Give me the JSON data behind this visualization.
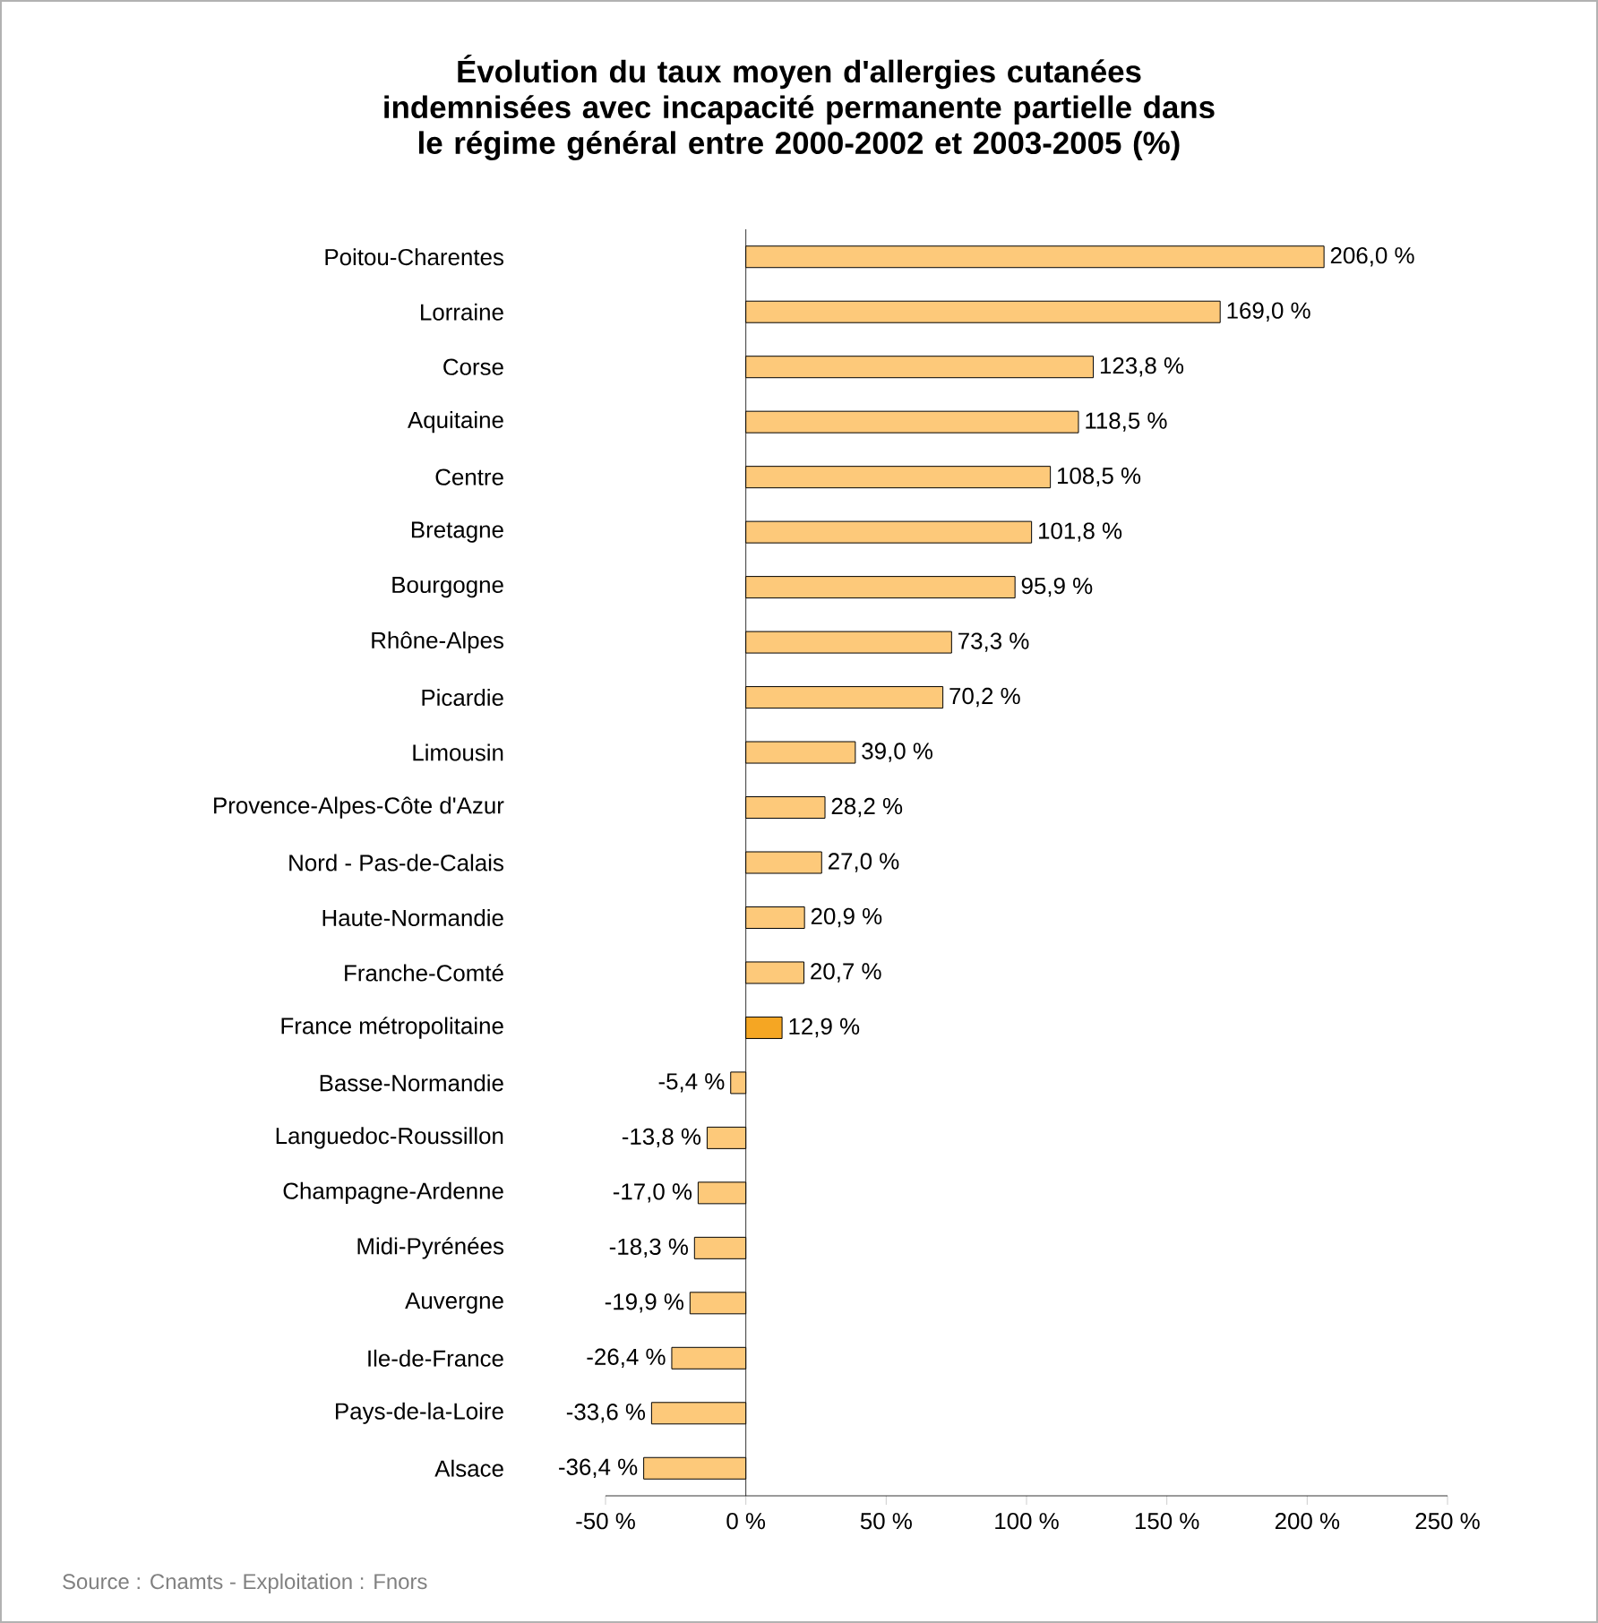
{
  "chart_data": {
    "type": "bar",
    "orientation": "horizontal",
    "title": "Évolution du taux moyen d'allergies cutanées indemnisées avec incapacité permanente partielle dans le régime général entre 2000-2002 et 2003-2005 (%)",
    "categories": [
      "Poitou-Charentes",
      "Lorraine",
      "Corse",
      "Aquitaine",
      "Centre",
      "Bretagne",
      "Bourgogne",
      "Rhône-Alpes",
      "Picardie",
      "Limousin",
      "Provence-Alpes-Côte d'Azur",
      "Nord - Pas-de-Calais",
      "Haute-Normandie",
      "Franche-Comté",
      "France métropolitaine",
      "Basse-Normandie",
      "Languedoc-Roussillon",
      "Champagne-Ardenne",
      "Midi-Pyrénées",
      "Auvergne",
      "Ile-de-France",
      "Pays-de-la-Loire",
      "Alsace"
    ],
    "values": [
      206.0,
      169.0,
      123.8,
      118.5,
      108.5,
      101.8,
      95.9,
      73.3,
      70.2,
      39.0,
      28.2,
      27.0,
      20.9,
      20.7,
      12.9,
      -5.4,
      -13.8,
      -17.0,
      -18.3,
      -19.9,
      -26.4,
      -33.6,
      -36.4
    ],
    "value_labels": [
      "206,0 %",
      "169,0 %",
      "123,8 %",
      "118,5 %",
      "108,5 %",
      "101,8 %",
      "95,9 %",
      "73,3 %",
      "70,2 %",
      "39,0 %",
      "28,2 %",
      "27,0 %",
      "20,9 %",
      "20,7 %",
      "12,9 %",
      "-5,4 %",
      "-13,8 %",
      "-17,0 %",
      "-18,3 %",
      "-19,9 %",
      "-26,4 %",
      "-33,6 %",
      "-36,4 %"
    ],
    "colors": [
      "#fdc97a",
      "#fdc97a",
      "#fdc97a",
      "#fdc97a",
      "#fdc97a",
      "#fdc97a",
      "#fdc97a",
      "#fdc97a",
      "#fdc97a",
      "#fdc97a",
      "#fdc97a",
      "#fdc97a",
      "#fdc97a",
      "#fdc97a",
      "#f5a623",
      "#fdc97a",
      "#fdc97a",
      "#fdc97a",
      "#fdc97a",
      "#fdc97a",
      "#fdc97a",
      "#fdc97a",
      "#fdc97a"
    ],
    "xlim": [
      -50,
      250
    ],
    "xticks": [
      {
        "value": -50,
        "label": "-50 %"
      },
      {
        "value": 0,
        "label": "0 %"
      },
      {
        "value": 50,
        "label": "50 %"
      },
      {
        "value": 100,
        "label": "100 %"
      },
      {
        "value": 150,
        "label": "150 %"
      },
      {
        "value": 200,
        "label": "200 %"
      },
      {
        "value": 250,
        "label": "250 %"
      }
    ],
    "annotations": [
      "Source : Cnamts - Exploitation : Fnors"
    ]
  }
}
